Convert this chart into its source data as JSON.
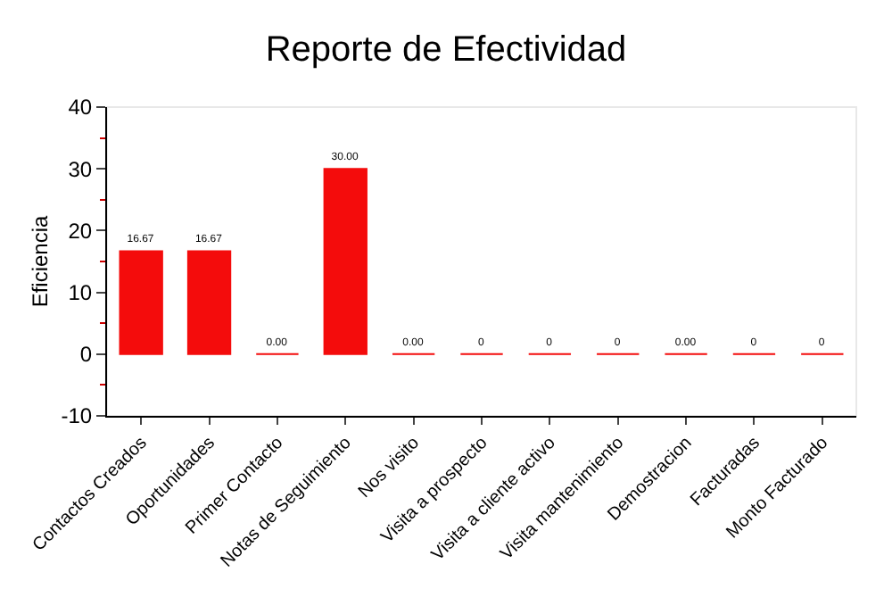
{
  "chart_data": {
    "type": "bar",
    "title": "Reporte de Efectividad",
    "ylabel": "Eficiencia",
    "categories": [
      "Contactos Creados",
      "Oportunidades",
      "Primer Contacto",
      "Notas de Seguimiento",
      "Nos visito",
      "Visita a prospecto",
      "Visita a cliente activo",
      "Visita mantenimiento",
      "Demostracion",
      "Facturadas",
      "Monto Facturado"
    ],
    "values": [
      16.67,
      16.67,
      0,
      30,
      0,
      0,
      0,
      0,
      0,
      0,
      0
    ],
    "value_labels": [
      "16.67",
      "16.67",
      "0.00",
      "30.00",
      "0.00",
      "0",
      "0",
      "0",
      "0.00",
      "0",
      "0"
    ],
    "color": "#f40c0c",
    "ylim": [
      -10,
      40
    ],
    "yticks": [
      -10,
      0,
      10,
      20,
      30,
      40
    ],
    "grid": false,
    "legend": false
  }
}
